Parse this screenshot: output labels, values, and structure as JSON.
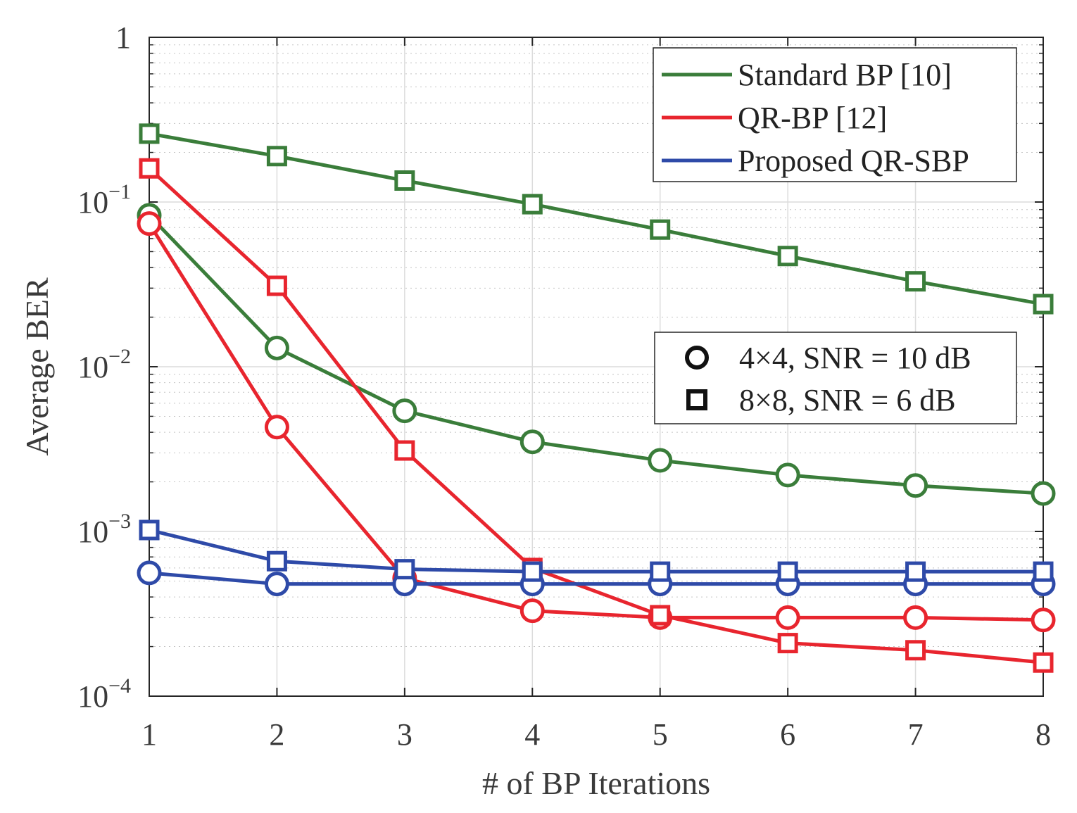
{
  "chart_data": {
    "type": "line",
    "xlabel": "# of BP Iterations",
    "ylabel": "Average BER",
    "x": [
      1,
      2,
      3,
      4,
      5,
      6,
      7,
      8
    ],
    "xlim": [
      1,
      8
    ],
    "ylim": [
      0.0001,
      1
    ],
    "yscale": "log",
    "grid": true,
    "minor_grid": true,
    "x_ticks": [
      "1",
      "2",
      "3",
      "4",
      "5",
      "6",
      "7",
      "8"
    ],
    "y_ticks": [
      {
        "value": 1,
        "base": "1",
        "exp": ""
      },
      {
        "value": 0.1,
        "base": "10",
        "exp": "−1"
      },
      {
        "value": 0.01,
        "base": "10",
        "exp": "−2"
      },
      {
        "value": 0.001,
        "base": "10",
        "exp": "−3"
      },
      {
        "value": 0.0001,
        "base": "10",
        "exp": "−4"
      }
    ],
    "series": [
      {
        "name": "Standard BP [10]",
        "config": "4×4, SNR = 10 dB",
        "color": "#3a7d3a",
        "marker": "circle",
        "values": [
          0.083,
          0.013,
          0.0054,
          0.0035,
          0.0027,
          0.0022,
          0.0019,
          0.0017
        ]
      },
      {
        "name": "Standard BP [10]",
        "config": "8×8, SNR = 6 dB",
        "color": "#3a7d3a",
        "marker": "square",
        "values": [
          0.26,
          0.19,
          0.135,
          0.097,
          0.068,
          0.047,
          0.033,
          0.024
        ]
      },
      {
        "name": "QR-BP [12]",
        "config": "4×4, SNR = 10 dB",
        "color": "#e8252e",
        "marker": "circle",
        "values": [
          0.074,
          0.0043,
          0.00052,
          0.00033,
          0.0003,
          0.0003,
          0.0003,
          0.00029
        ]
      },
      {
        "name": "QR-BP [12]",
        "config": "8×8, SNR = 6 dB",
        "color": "#e8252e",
        "marker": "square",
        "values": [
          0.16,
          0.031,
          0.0031,
          0.0006,
          0.00031,
          0.00021,
          0.00019,
          0.00016
        ]
      },
      {
        "name": "Proposed QR-SBP",
        "config": "4×4, SNR = 10 dB",
        "color": "#2e4aa8",
        "marker": "circle",
        "values": [
          0.00056,
          0.00048,
          0.00048,
          0.00048,
          0.00048,
          0.00048,
          0.00048,
          0.00048
        ]
      },
      {
        "name": "Proposed QR-SBP",
        "config": "8×8, SNR = 6 dB",
        "color": "#2e4aa8",
        "marker": "square",
        "values": [
          0.00102,
          0.00066,
          0.00059,
          0.00057,
          0.00057,
          0.00057,
          0.00057,
          0.00057
        ]
      }
    ],
    "legend_algorithms": {
      "placement": "top-right",
      "entries": [
        {
          "label": "Standard BP [10]",
          "color": "#3a7d3a"
        },
        {
          "label": "QR-BP [12]",
          "color": "#e8252e"
        },
        {
          "label": "Proposed QR-SBP",
          "color": "#2e4aa8"
        }
      ]
    },
    "legend_markers": {
      "placement": "right",
      "entries": [
        {
          "label": "4×4, SNR = 10 dB",
          "marker": "circle"
        },
        {
          "label": "8×8, SNR = 6 dB",
          "marker": "square"
        }
      ]
    }
  }
}
